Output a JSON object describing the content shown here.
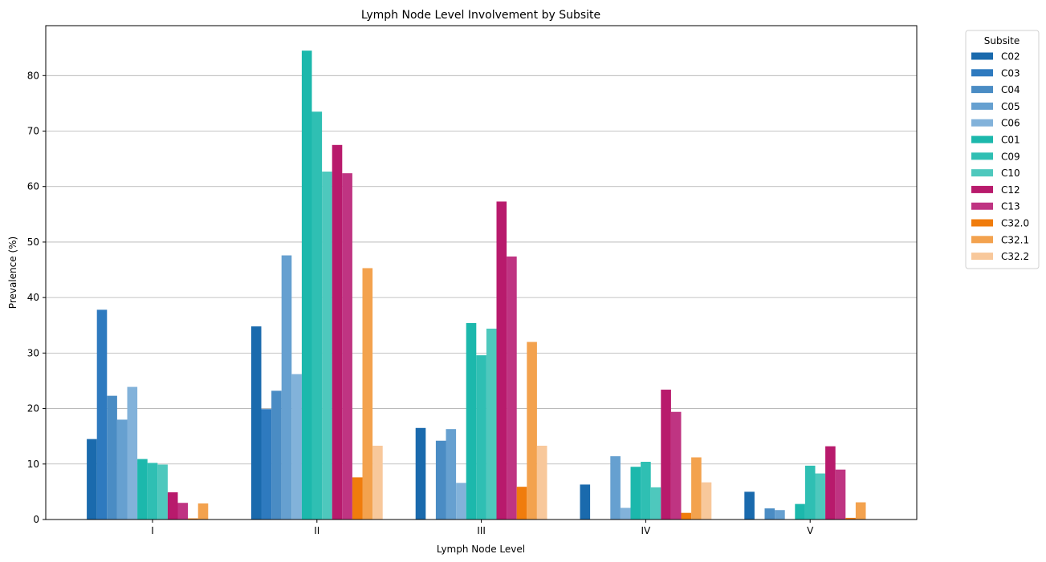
{
  "chart_data": {
    "type": "bar",
    "title": "Lymph Node Level Involvement by Subsite",
    "xlabel": "Lymph Node Level",
    "ylabel": "Prevalence (%)",
    "categories": [
      "I",
      "II",
      "III",
      "IV",
      "V"
    ],
    "ylim": [
      0,
      89
    ],
    "yticks": [
      0,
      10,
      20,
      30,
      40,
      50,
      60,
      70,
      80
    ],
    "grid": "y",
    "legend": {
      "title": "Subsite",
      "placement": "outside-top-right"
    },
    "series": [
      {
        "name": "C02",
        "color": "#1a6aad",
        "values": [
          14.5,
          34.8,
          16.5,
          6.3,
          5.0
        ]
      },
      {
        "name": "C03",
        "color": "#2e7abf",
        "values": [
          37.8,
          19.9,
          0,
          0,
          0
        ]
      },
      {
        "name": "C04",
        "color": "#4a8cc4",
        "values": [
          22.3,
          23.2,
          14.2,
          0,
          2.0
        ]
      },
      {
        "name": "C05",
        "color": "#66a0d0",
        "values": [
          18.0,
          47.6,
          16.3,
          11.4,
          1.7
        ]
      },
      {
        "name": "C06",
        "color": "#82b2da",
        "values": [
          23.9,
          26.2,
          6.6,
          2.1,
          0
        ]
      },
      {
        "name": "C01",
        "color": "#1cb8ac",
        "values": [
          10.9,
          84.5,
          35.4,
          9.5,
          2.8
        ]
      },
      {
        "name": "C09",
        "color": "#2fbfb3",
        "values": [
          10.2,
          73.5,
          29.6,
          10.4,
          9.7
        ]
      },
      {
        "name": "C10",
        "color": "#4ec8bd",
        "values": [
          9.9,
          62.7,
          34.4,
          5.8,
          8.3
        ]
      },
      {
        "name": "C12",
        "color": "#b81a6c",
        "values": [
          4.9,
          67.5,
          57.3,
          23.4,
          13.2
        ]
      },
      {
        "name": "C13",
        "color": "#bf3482",
        "values": [
          3.0,
          62.4,
          47.4,
          19.4,
          9.0
        ]
      },
      {
        "name": "C32.0",
        "color": "#f07c0c",
        "values": [
          0.2,
          7.6,
          5.9,
          1.2,
          0.3
        ]
      },
      {
        "name": "C32.1",
        "color": "#f3a24e",
        "values": [
          2.9,
          45.3,
          32.0,
          11.2,
          3.1
        ]
      },
      {
        "name": "C32.2",
        "color": "#f8c89b",
        "values": [
          0,
          13.3,
          13.3,
          6.7,
          0
        ]
      }
    ]
  }
}
